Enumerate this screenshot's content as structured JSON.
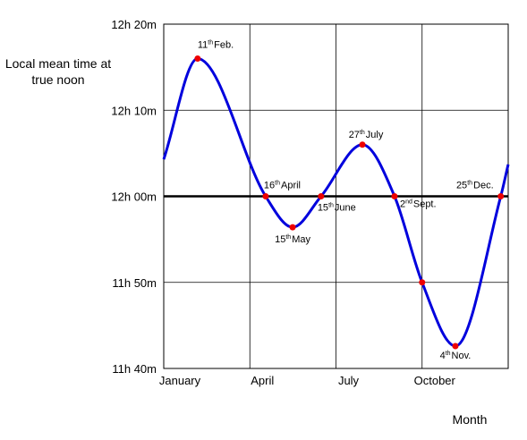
{
  "chart_data": {
    "type": "line",
    "y_label": "Local mean time at true noon",
    "x_label": "Month",
    "xlim": [
      0,
      12
    ],
    "xticks": [
      {
        "value": 0,
        "label": "January"
      },
      {
        "value": 3,
        "label": "April"
      },
      {
        "value": 6,
        "label": "July"
      },
      {
        "value": 9,
        "label": "October"
      }
    ],
    "ylim": [
      -20,
      20
    ],
    "yticks": [
      {
        "value": -20,
        "label": "11h 40m"
      },
      {
        "value": -10,
        "label": "11h 50m"
      },
      {
        "value": 0,
        "label": "12h 00m"
      },
      {
        "value": 10,
        "label": "12h 10m"
      },
      {
        "value": 20,
        "label": "12h 20m"
      }
    ],
    "grid": true,
    "series": [
      {
        "color": "#0000dd",
        "marker_color": "#ee0000",
        "x": [
          0,
          1.18,
          3.55,
          4.49,
          5.48,
          6.92,
          8.04,
          9.0,
          10.16,
          11.74,
          12
        ],
        "values": [
          4.3,
          16,
          0,
          -3.6,
          0,
          6,
          0,
          -10,
          -17.4,
          0,
          3.7
        ],
        "markers": [
          false,
          true,
          true,
          true,
          true,
          true,
          true,
          true,
          true,
          true,
          false
        ],
        "labels": [
          null,
          {
            "day": "11",
            "suffix": "th",
            "month": "Feb."
          },
          {
            "day": "16",
            "suffix": "th",
            "month": "April"
          },
          {
            "day": "15",
            "suffix": "th",
            "month": "May"
          },
          {
            "day": "15",
            "suffix": "th",
            "month": "June"
          },
          {
            "day": "27",
            "suffix": "th",
            "month": "July"
          },
          {
            "day": "2",
            "suffix": "nd",
            "month": "Sept."
          },
          null,
          {
            "day": "4",
            "suffix": "th",
            "month": "Nov."
          },
          {
            "day": "25",
            "suffix": "th",
            "month": "Dec."
          },
          null
        ]
      }
    ]
  }
}
